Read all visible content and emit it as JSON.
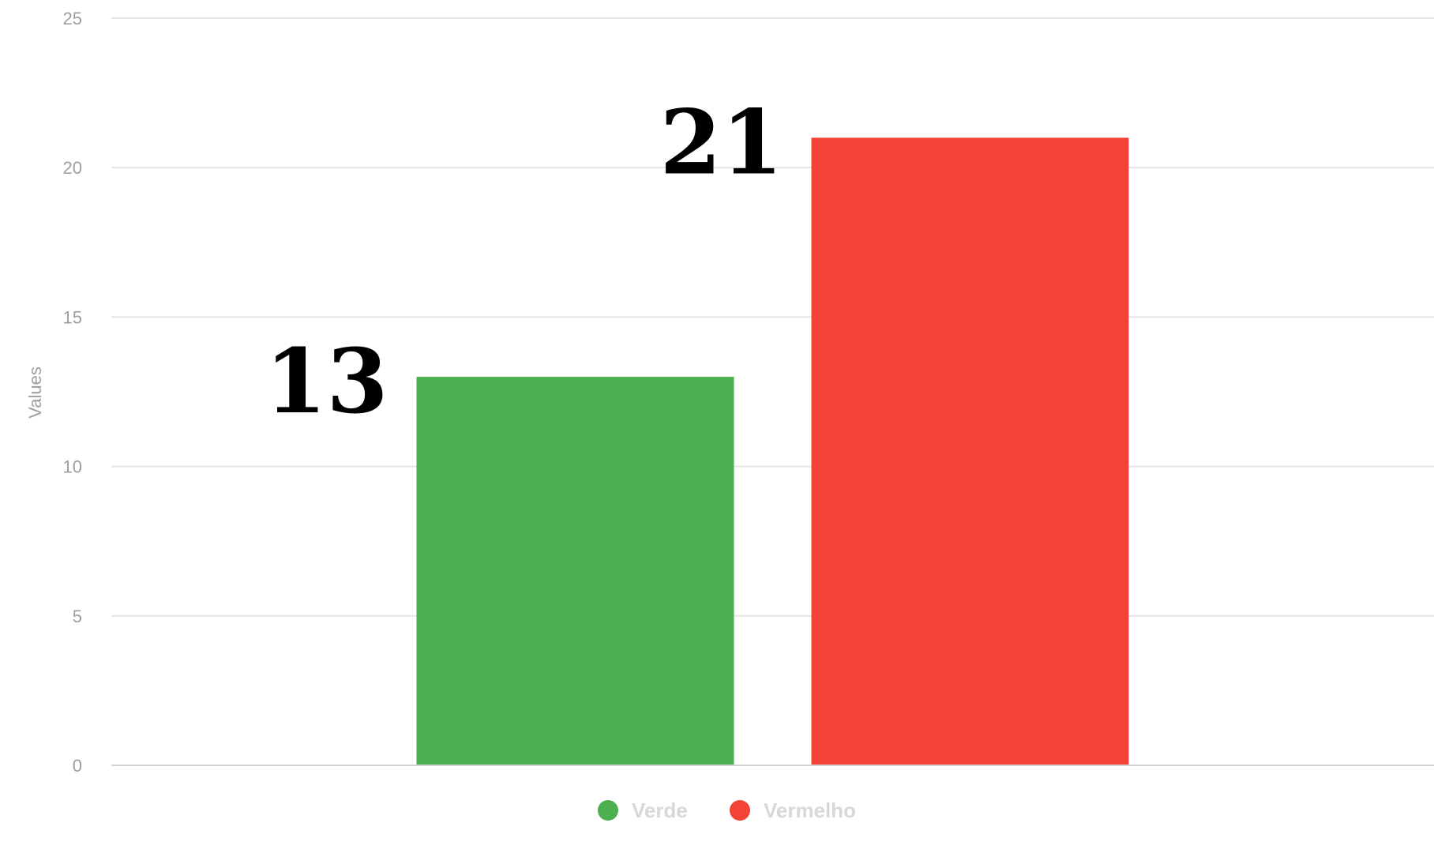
{
  "chart_data": {
    "type": "bar",
    "categories": [
      "Verde",
      "Vermelho"
    ],
    "values": [
      13,
      21
    ],
    "colors": [
      "#4caf50",
      "#f44336"
    ],
    "title": "",
    "xlabel": "",
    "ylabel": "Values",
    "ylim": [
      0,
      25
    ],
    "yticks": [
      0,
      5,
      10,
      15,
      20,
      25
    ],
    "grid": true,
    "legend": {
      "position": "bottom",
      "items": [
        {
          "label": "Verde",
          "color": "#4caf50"
        },
        {
          "label": "Vermelho",
          "color": "#f44336"
        }
      ]
    },
    "data_labels": [
      "13",
      "21"
    ]
  }
}
